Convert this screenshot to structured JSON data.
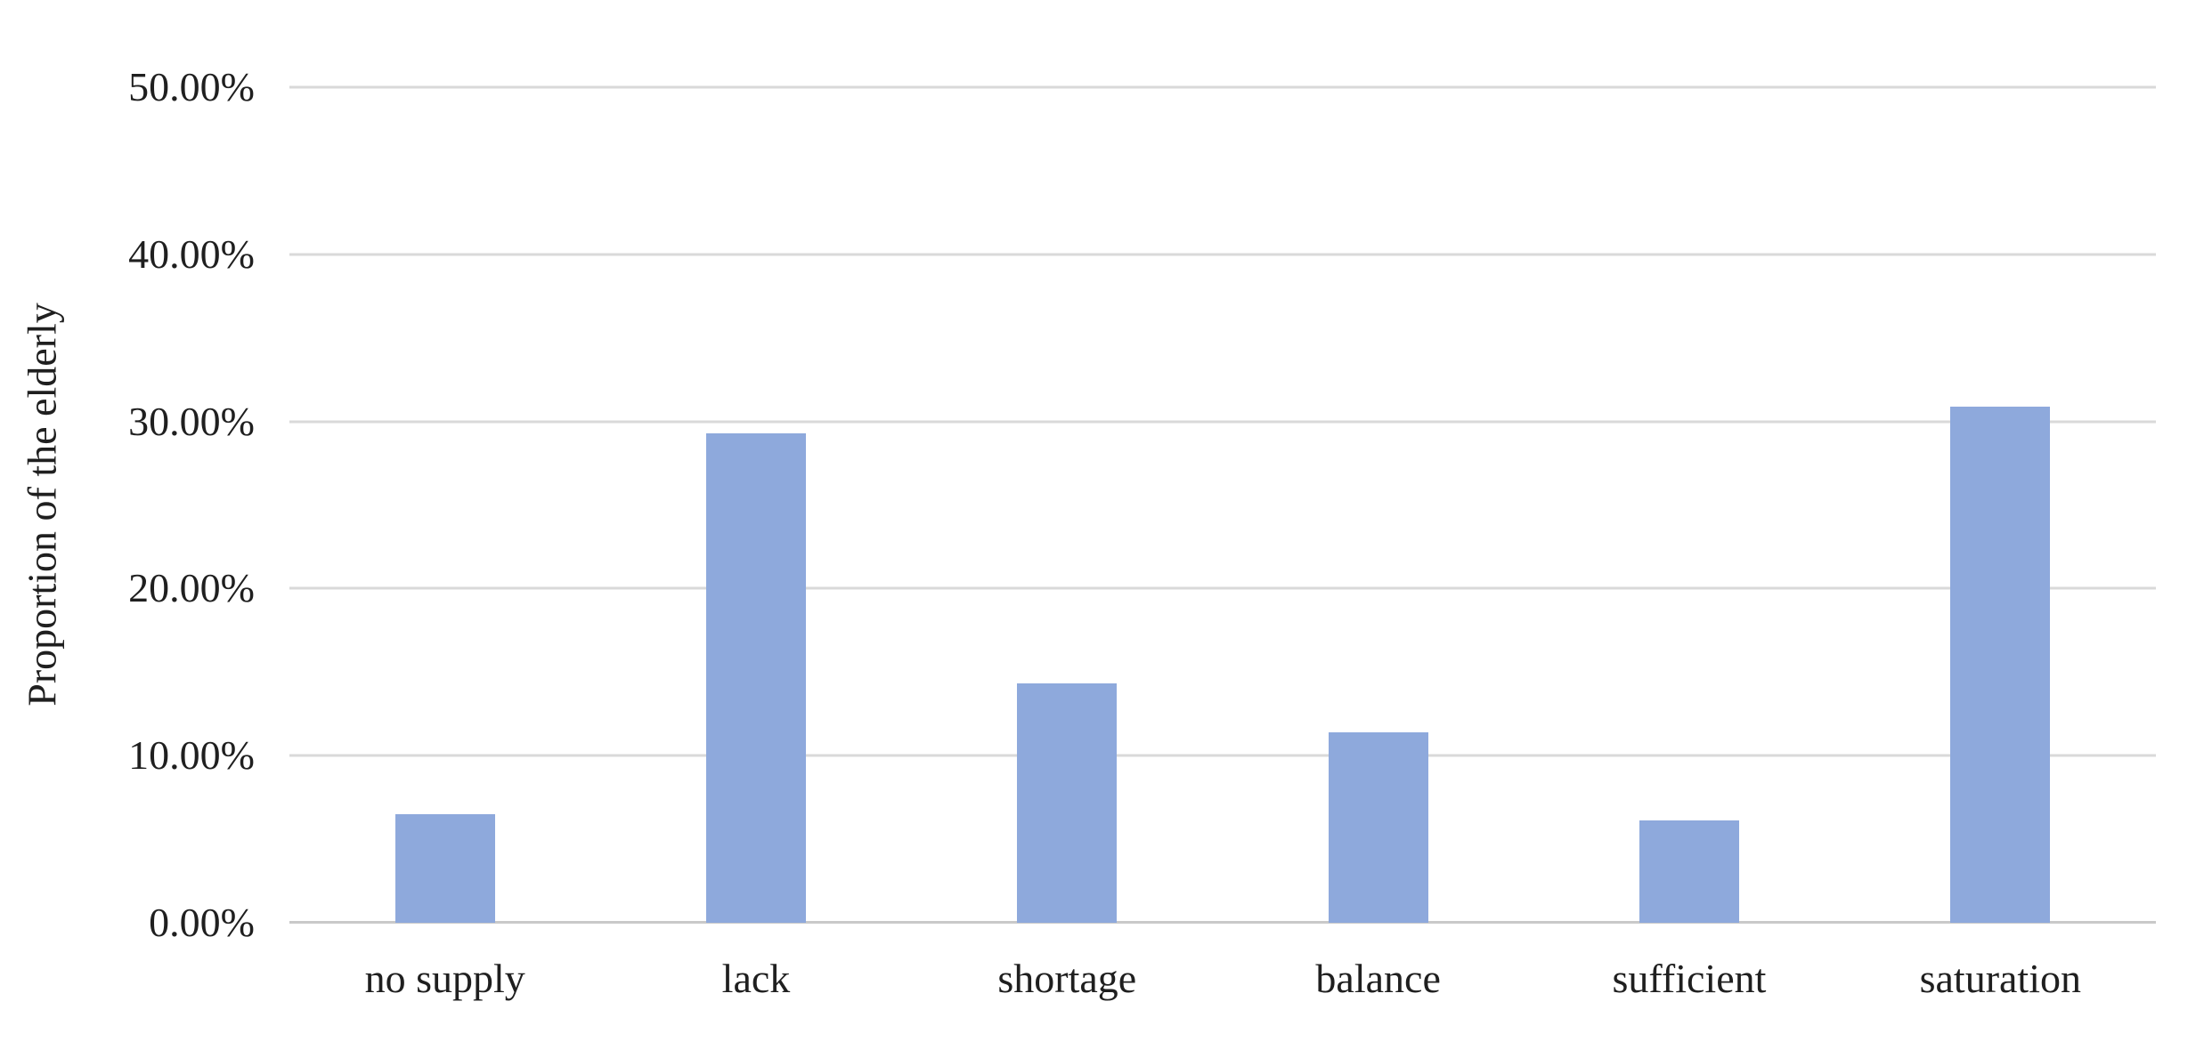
{
  "chart_data": {
    "type": "bar",
    "title": "",
    "xlabel": "",
    "ylabel": "Proportion of the elderly",
    "categories": [
      "no supply",
      "lack",
      "shortage",
      "balance",
      "sufficient",
      "saturation"
    ],
    "values": [
      6.5,
      29.3,
      14.3,
      11.4,
      6.1,
      30.9
    ],
    "ylim": [
      0,
      50
    ],
    "ytick_values": [
      50,
      40,
      30,
      20,
      10,
      0
    ],
    "ytick_labels": [
      "50.00%",
      "40.00%",
      "30.00%",
      "20.00%",
      "10.00%",
      "0.00%"
    ],
    "grid": true,
    "legend": "none",
    "colors": {
      "bar": "#8ea9dc",
      "gridline": "#d9d9d9",
      "axisline": "#c9c9c9",
      "text": "#1f1f1f",
      "background": "#ffffff"
    }
  }
}
